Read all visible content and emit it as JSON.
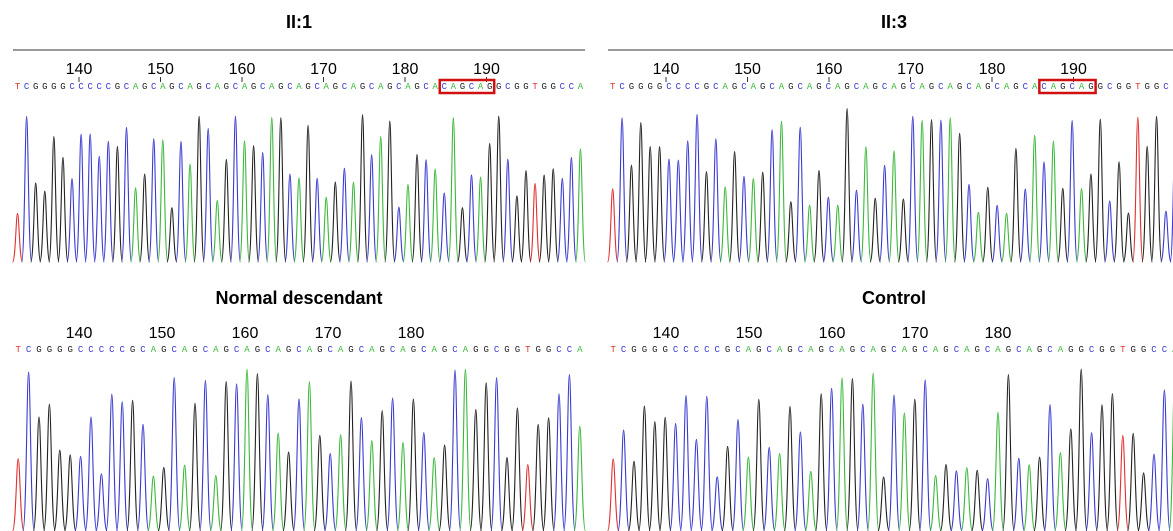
{
  "panels": [
    {
      "title": "II:1",
      "ticks": [
        140,
        150,
        160,
        170,
        180,
        190
      ],
      "seq_before": "TCGGGGCCCCCGCAGCAGCAGCAGCAGCAGCAGCAGCAGCAGCAGCA",
      "seq_boxed": "CAGCAG",
      "seq_after": "GCGGTGGCCA"
    },
    {
      "title": "II:3",
      "ticks": [
        140,
        150,
        160,
        170,
        180,
        190
      ],
      "seq_before": "TCGGGGCCCCGCAGCAGCAGCAGCAGCAGCAGCAGCAGCAGCAGCA",
      "seq_boxed": "CAGCAG",
      "seq_after": "GCGGTGGCC"
    },
    {
      "title": "Normal descendant",
      "ticks": [
        140,
        150,
        160,
        170,
        180
      ],
      "seq_before": "TCGGGGCCCCCGCAGCAGCAGCAGCAGCAGCAGCAGCAGCAGCAGGCGGTGGCCA"
    },
    {
      "title": "Control",
      "ticks": [
        140,
        150,
        160,
        170,
        180
      ],
      "seq_before": "TCGGGGCCCCCGCAGCAGCAGCAGCAGCAGCAGCAGCAGCAGCAGGCGGTGGCCA"
    }
  ]
}
